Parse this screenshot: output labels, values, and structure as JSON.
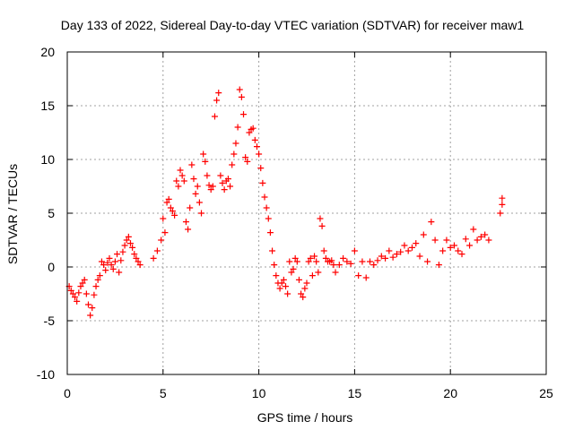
{
  "chart_data": {
    "type": "scatter",
    "title": "Day 133 of 2022, Sidereal Day-to-day VTEC variation (SDTVAR) for receiver maw1",
    "xlabel": "GPS time / hours",
    "ylabel": "SDTVAR / TECUs",
    "xlim": [
      0,
      25
    ],
    "ylim": [
      -10,
      20
    ],
    "xticks": [
      0,
      5,
      10,
      15,
      20,
      25
    ],
    "yticks": [
      -10,
      -5,
      0,
      5,
      10,
      15,
      20
    ],
    "xtick_labels": [
      "0",
      "5",
      "10",
      "15",
      "20",
      "25"
    ],
    "ytick_labels": [
      "-10",
      "-5",
      "0",
      "5",
      "10",
      "15",
      "20"
    ],
    "grid": true,
    "marker": "+",
    "color": "#ff0000",
    "series": [
      {
        "name": "maw1",
        "x": [
          0.1,
          0.2,
          0.3,
          0.4,
          0.5,
          0.6,
          0.7,
          0.8,
          0.9,
          1.0,
          1.1,
          1.2,
          1.3,
          1.4,
          1.5,
          1.6,
          1.7,
          1.8,
          1.9,
          2.0,
          2.1,
          2.2,
          2.3,
          2.4,
          2.5,
          2.6,
          2.7,
          2.8,
          2.9,
          3.0,
          3.1,
          3.2,
          3.3,
          3.4,
          3.5,
          3.6,
          3.7,
          3.8,
          4.5,
          4.7,
          4.9,
          5.0,
          5.1,
          5.2,
          5.3,
          5.4,
          5.5,
          5.6,
          5.7,
          5.8,
          5.9,
          6.0,
          6.1,
          6.2,
          6.3,
          6.4,
          6.5,
          6.6,
          6.7,
          6.8,
          6.9,
          7.0,
          7.1,
          7.2,
          7.3,
          7.4,
          7.5,
          7.6,
          7.7,
          7.8,
          7.9,
          8.0,
          8.1,
          8.2,
          8.3,
          8.4,
          8.5,
          8.6,
          8.7,
          8.8,
          8.9,
          9.0,
          9.1,
          9.2,
          9.3,
          9.4,
          9.5,
          9.6,
          9.7,
          9.8,
          9.9,
          10.0,
          10.1,
          10.2,
          10.3,
          10.4,
          10.5,
          10.6,
          10.7,
          10.8,
          10.9,
          11.0,
          11.1,
          11.2,
          11.3,
          11.4,
          11.5,
          11.6,
          11.7,
          11.8,
          11.9,
          12.0,
          12.1,
          12.2,
          12.3,
          12.4,
          12.5,
          12.6,
          12.7,
          12.8,
          12.9,
          13.0,
          13.1,
          13.2,
          13.3,
          13.4,
          13.5,
          13.6,
          13.7,
          13.8,
          13.9,
          14.0,
          14.2,
          14.4,
          14.6,
          14.8,
          15.0,
          15.2,
          15.4,
          15.6,
          15.8,
          16.0,
          16.2,
          16.4,
          16.6,
          16.8,
          17.0,
          17.2,
          17.4,
          17.6,
          17.8,
          18.0,
          18.2,
          18.4,
          18.6,
          18.8,
          19.0,
          19.2,
          19.4,
          19.6,
          19.8,
          20.0,
          20.2,
          20.4,
          20.6,
          20.8,
          21.0,
          21.2,
          21.4,
          21.6,
          21.8,
          22.0,
          22.6,
          22.7,
          22.7
        ],
        "y": [
          -1.8,
          -2.2,
          -2.5,
          -2.8,
          -3.2,
          -2.4,
          -1.8,
          -1.5,
          -1.2,
          -2.5,
          -3.5,
          -4.5,
          -3.8,
          -2.6,
          -1.8,
          -1.2,
          -0.8,
          0.5,
          0.2,
          -0.3,
          0.4,
          0.8,
          0.2,
          -0.2,
          0.5,
          1.2,
          -0.5,
          0.6,
          1.4,
          2.0,
          2.5,
          2.8,
          2.2,
          1.8,
          1.2,
          0.8,
          0.5,
          0.2,
          0.8,
          1.5,
          2.5,
          4.5,
          3.2,
          6.0,
          6.3,
          5.5,
          5.2,
          4.8,
          8.0,
          7.5,
          9.0,
          8.5,
          8.0,
          4.2,
          3.5,
          5.5,
          9.5,
          8.2,
          6.8,
          7.5,
          6.0,
          5.0,
          10.5,
          9.8,
          8.5,
          7.6,
          7.2,
          7.5,
          14.0,
          15.5,
          16.2,
          8.5,
          7.8,
          7.2,
          8.0,
          8.2,
          7.5,
          9.5,
          10.5,
          11.5,
          13.0,
          16.5,
          15.8,
          14.2,
          10.2,
          9.8,
          12.5,
          12.8,
          12.9,
          11.8,
          11.2,
          10.5,
          9.2,
          7.8,
          6.5,
          5.5,
          4.5,
          3.2,
          1.5,
          0.2,
          -0.8,
          -1.5,
          -2.0,
          -1.5,
          -1.2,
          -1.8,
          -2.5,
          0.5,
          -0.5,
          -0.2,
          0.8,
          0.5,
          -1.2,
          -2.5,
          -2.8,
          -2.0,
          -1.5,
          0.5,
          0.8,
          -0.8,
          1.0,
          0.5,
          -0.5,
          4.5,
          3.8,
          1.5,
          0.8,
          0.5,
          0.5,
          0.6,
          0.2,
          -0.5,
          0.2,
          0.8,
          0.5,
          0.3,
          1.5,
          -0.8,
          0.5,
          -1.0,
          0.5,
          0.2,
          0.6,
          1.0,
          0.8,
          1.5,
          0.9,
          1.2,
          1.4,
          2.0,
          1.5,
          1.8,
          2.2,
          1.0,
          3.0,
          0.5,
          4.2,
          2.5,
          0.2,
          1.5,
          2.5,
          1.8,
          2.0,
          1.5,
          1.2,
          2.6,
          2.0,
          3.5,
          2.5,
          2.8,
          3.0,
          2.5,
          5.0,
          5.8,
          6.4
        ]
      }
    ]
  }
}
